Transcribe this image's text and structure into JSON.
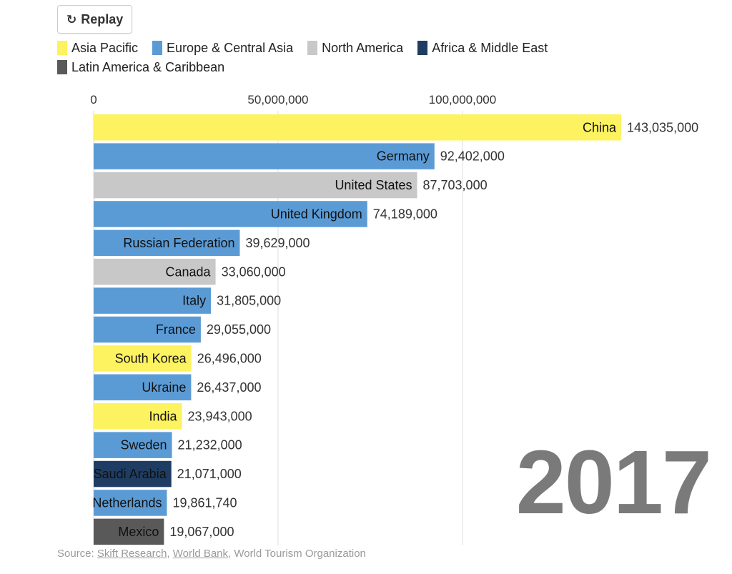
{
  "replay_label": "Replay",
  "legend": [
    {
      "label": "Asia Pacific",
      "color": "#fdf25f"
    },
    {
      "label": "Europe & Central Asia",
      "color": "#5b9bd5"
    },
    {
      "label": "North America",
      "color": "#c8c8c8"
    },
    {
      "label": "Africa & Middle East",
      "color": "#1f3d63"
    },
    {
      "label": "Latin America & Caribbean",
      "color": "#595959"
    }
  ],
  "year": "2017",
  "source": {
    "prefix": "Source: ",
    "link1": "Skift Research",
    "sep1": ", ",
    "link2": "World Bank",
    "suffix": ", World Tourism Organization"
  },
  "chart_data": {
    "type": "bar",
    "orientation": "horizontal",
    "x_ticks": [
      0,
      50000000,
      100000000
    ],
    "x_tick_labels": [
      "0",
      "50,000,000",
      "100,000,000"
    ],
    "xlim": [
      0,
      143035000
    ],
    "grid": true,
    "bars": [
      {
        "label": "China",
        "value": 143035000,
        "value_label": "143,035,000",
        "region": "Asia Pacific",
        "color": "#fdf25f"
      },
      {
        "label": "Germany",
        "value": 92402000,
        "value_label": "92,402,000",
        "region": "Europe & Central Asia",
        "color": "#5b9bd5"
      },
      {
        "label": "United States",
        "value": 87703000,
        "value_label": "87,703,000",
        "region": "North America",
        "color": "#c8c8c8"
      },
      {
        "label": "United Kingdom",
        "value": 74189000,
        "value_label": "74,189,000",
        "region": "Europe & Central Asia",
        "color": "#5b9bd5"
      },
      {
        "label": "Russian Federation",
        "value": 39629000,
        "value_label": "39,629,000",
        "region": "Europe & Central Asia",
        "color": "#5b9bd5"
      },
      {
        "label": "Canada",
        "value": 33060000,
        "value_label": "33,060,000",
        "region": "North America",
        "color": "#c8c8c8"
      },
      {
        "label": "Italy",
        "value": 31805000,
        "value_label": "31,805,000",
        "region": "Europe & Central Asia",
        "color": "#5b9bd5"
      },
      {
        "label": "France",
        "value": 29055000,
        "value_label": "29,055,000",
        "region": "Europe & Central Asia",
        "color": "#5b9bd5"
      },
      {
        "label": "South Korea",
        "value": 26496000,
        "value_label": "26,496,000",
        "region": "Asia Pacific",
        "color": "#fdf25f"
      },
      {
        "label": "Ukraine",
        "value": 26437000,
        "value_label": "26,437,000",
        "region": "Europe & Central Asia",
        "color": "#5b9bd5"
      },
      {
        "label": "India",
        "value": 23943000,
        "value_label": "23,943,000",
        "region": "Asia Pacific",
        "color": "#fdf25f"
      },
      {
        "label": "Sweden",
        "value": 21232000,
        "value_label": "21,232,000",
        "region": "Europe & Central Asia",
        "color": "#5b9bd5"
      },
      {
        "label": "Saudi Arabia",
        "value": 21071000,
        "value_label": "21,071,000",
        "region": "Africa & Middle East",
        "color": "#1f3d63"
      },
      {
        "label": "Netherlands",
        "value": 19861740,
        "value_label": "19,861,740",
        "region": "Europe & Central Asia",
        "color": "#5b9bd5"
      },
      {
        "label": "Mexico",
        "value": 19067000,
        "value_label": "19,067,000",
        "region": "Latin America & Caribbean",
        "color": "#595959"
      }
    ]
  }
}
